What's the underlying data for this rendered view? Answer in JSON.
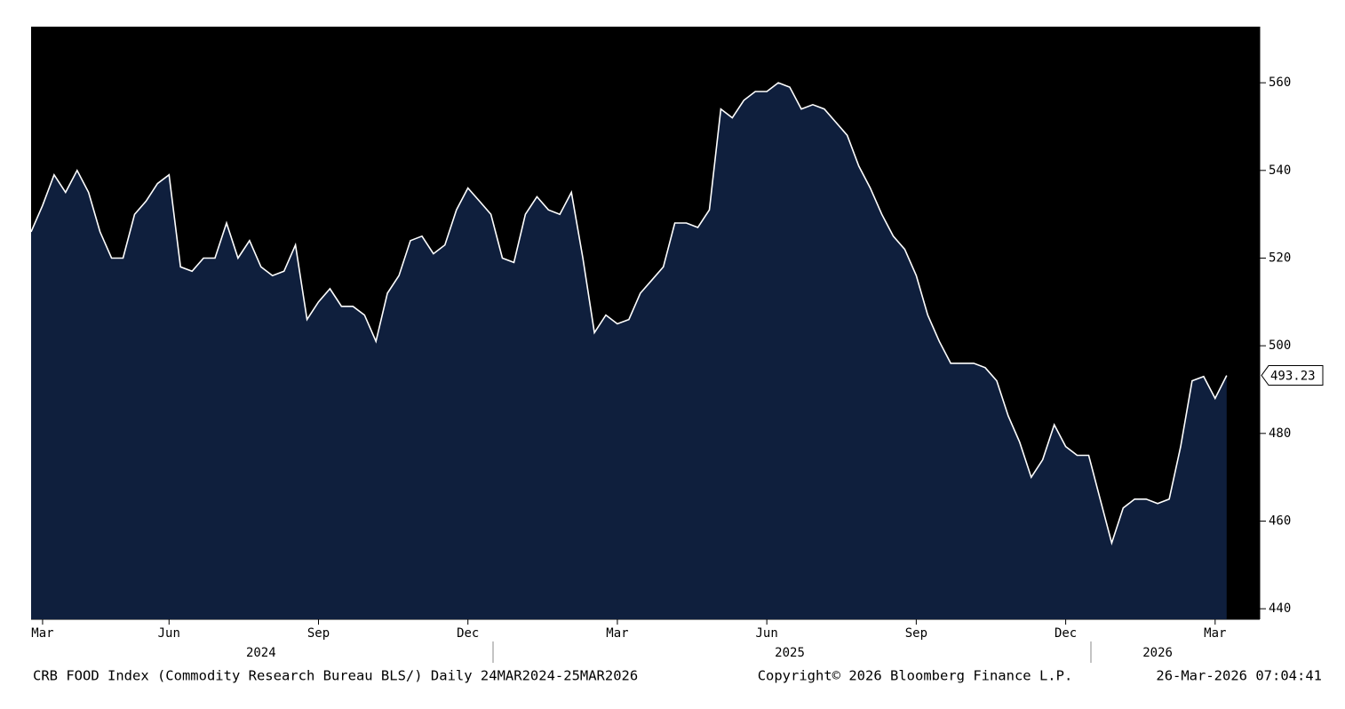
{
  "chart_data": {
    "type": "area",
    "title": "CRB FOOD Index (Commodity Research Bureau BLS/) Daily 24MAR2024-25MAR2026",
    "copyright": "Copyright© 2026 Bloomberg Finance L.P.",
    "timestamp": "26-Mar-2026 07:04:41",
    "categories": [
      null,
      "Mar",
      null,
      null,
      null,
      null,
      null,
      null,
      null,
      null,
      null,
      null,
      "Jun",
      null,
      null,
      null,
      null,
      null,
      null,
      null,
      null,
      null,
      null,
      null,
      null,
      "Sep",
      null,
      null,
      null,
      null,
      null,
      null,
      null,
      null,
      null,
      null,
      null,
      null,
      "Dec",
      null,
      null,
      null,
      null,
      null,
      null,
      null,
      null,
      null,
      null,
      null,
      null,
      "Mar",
      null,
      null,
      null,
      null,
      null,
      null,
      null,
      null,
      null,
      null,
      null,
      null,
      "Jun",
      null,
      null,
      null,
      null,
      null,
      null,
      null,
      null,
      null,
      null,
      null,
      null,
      "Sep",
      null,
      null,
      null,
      null,
      null,
      null,
      null,
      null,
      null,
      null,
      null,
      null,
      "Dec",
      null,
      null,
      null,
      null,
      null,
      null,
      null,
      null,
      null,
      null,
      null,
      null,
      "Mar",
      null
    ],
    "year_categories": [
      null,
      null,
      null,
      null,
      null,
      null,
      null,
      null,
      null,
      null,
      null,
      null,
      null,
      null,
      null,
      null,
      null,
      null,
      null,
      null,
      "2024",
      null,
      null,
      null,
      null,
      null,
      null,
      null,
      null,
      null,
      null,
      null,
      null,
      null,
      null,
      null,
      null,
      null,
      null,
      null,
      null,
      null,
      null,
      null,
      null,
      null,
      null,
      null,
      null,
      null,
      null,
      null,
      null,
      null,
      null,
      null,
      null,
      null,
      null,
      null,
      null,
      null,
      null,
      null,
      null,
      null,
      "2025",
      null,
      null,
      null,
      null,
      null,
      null,
      null,
      null,
      null,
      null,
      null,
      null,
      null,
      null,
      null,
      null,
      null,
      null,
      null,
      null,
      null,
      null,
      null,
      null,
      null,
      null,
      null,
      null,
      null,
      null,
      null,
      "2026",
      null,
      null,
      null,
      null,
      null,
      null
    ],
    "values": [
      526,
      532,
      539,
      535,
      540,
      535,
      526,
      520,
      520,
      530,
      533,
      537,
      539,
      518,
      517,
      520,
      520,
      528,
      520,
      524,
      518,
      516,
      517,
      523,
      506,
      510,
      513,
      509,
      509,
      507,
      501,
      512,
      516,
      524,
      525,
      521,
      523,
      531,
      536,
      533,
      530,
      520,
      519,
      530,
      534,
      531,
      530,
      535,
      520,
      503,
      507,
      505,
      506,
      512,
      515,
      518,
      528,
      528,
      527,
      531,
      554,
      552,
      556,
      558,
      558,
      560,
      559,
      554,
      555,
      554,
      551,
      548,
      541,
      536,
      530,
      525,
      522,
      516,
      507,
      501,
      496,
      496,
      496,
      495,
      492,
      484,
      478,
      470,
      474,
      482,
      477,
      475,
      475,
      465,
      455,
      463,
      465,
      465,
      464,
      465,
      477,
      492,
      493,
      488,
      493.23
    ],
    "line_color": "#ffffff",
    "fill_color": "#0f1f3d",
    "background": "#000000",
    "ylim": [
      437.6,
      572.8
    ],
    "yticks": [
      440,
      460,
      480,
      500,
      520,
      540,
      560
    ]
  }
}
